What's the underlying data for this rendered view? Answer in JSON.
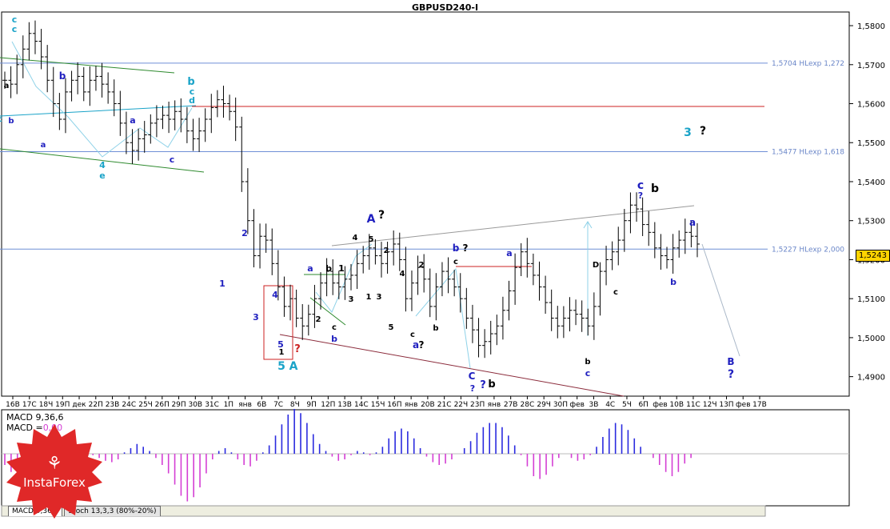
{
  "title": "GBPUSD240-I",
  "macd": {
    "label": "MACD 9,36,6",
    "main_label": "MACD =",
    "main_value": "0,00"
  },
  "tabs": [
    "MACD 9,36,6",
    "Stoch 13,3,3 (80%-20%)"
  ],
  "current_price": "1,5243",
  "brand": "InstaForex",
  "colors": {
    "up_hist": "#2a2adf",
    "down_hist": "#d43fd4",
    "accent": "#ffd400",
    "hline": "#6f8fd6",
    "resistance": "#cc2222",
    "trend_green": "#2e8a2e",
    "trend_gray": "#9a9a9a",
    "down_channel": "#8b2b3b",
    "wave_blue": "#1f1fbf",
    "wave_teal": "#1aa3c8"
  },
  "chart_data": {
    "type": "line",
    "ylim": [
      1.485,
      1.5835
    ],
    "y_ticks": [
      "1,5800",
      "1,5700",
      "1,5600",
      "1,5500",
      "1,5400",
      "1,5300",
      "1,5200",
      "1,5100",
      "1,5000",
      "1,4900"
    ],
    "x_ticks": [
      "16В",
      "17С",
      "18Ч",
      "19П",
      "дек",
      "22П",
      "23В",
      "24С",
      "25Ч",
      "26П",
      "29П",
      "30В",
      "31С",
      "1П",
      "янв",
      "6В",
      "7С",
      "8Ч",
      "9П",
      "12П",
      "13В",
      "14С",
      "15Ч",
      "16П",
      "янв",
      "20В",
      "21С",
      "22Ч",
      "23П",
      "янв",
      "27В",
      "28С",
      "29Ч",
      "30П",
      "фев",
      "3В",
      "4С",
      "5Ч",
      "6П",
      "фев",
      "10В",
      "11С",
      "12Ч",
      "13П",
      "фев",
      "17В"
    ],
    "close": [
      1.566,
      1.565,
      1.57,
      1.574,
      1.578,
      1.576,
      1.572,
      1.566,
      1.56,
      1.556,
      1.563,
      1.566,
      1.567,
      1.563,
      1.566,
      1.567,
      1.565,
      1.563,
      1.56,
      1.555,
      1.55,
      1.548,
      1.551,
      1.552,
      1.555,
      1.556,
      1.557,
      1.556,
      1.558,
      1.556,
      1.553,
      1.551,
      1.553,
      1.556,
      1.559,
      1.561,
      1.56,
      1.558,
      1.554,
      1.54,
      1.53,
      1.521,
      1.526,
      1.525,
      1.519,
      1.513,
      1.508,
      1.51,
      1.505,
      1.503,
      1.506,
      1.51,
      1.514,
      1.517,
      1.514,
      1.513,
      1.515,
      1.516,
      1.519,
      1.521,
      1.523,
      1.521,
      1.519,
      1.522,
      1.524,
      1.52,
      1.51,
      1.514,
      1.518,
      1.515,
      1.508,
      1.513,
      1.517,
      1.515,
      1.513,
      1.51,
      1.505,
      1.502,
      1.498,
      1.499,
      1.501,
      1.503,
      1.507,
      1.512,
      1.518,
      1.522,
      1.519,
      1.516,
      1.513,
      1.509,
      1.505,
      1.503,
      1.505,
      1.507,
      1.506,
      1.505,
      1.503,
      1.508,
      1.517,
      1.52,
      1.522,
      1.525,
      1.53,
      1.534,
      1.533,
      1.529,
      1.527,
      1.523,
      1.521,
      1.52,
      1.523,
      1.525,
      1.527,
      1.526,
      1.524
    ],
    "hlines": [
      {
        "label": "1,5704 HLexp 1,272",
        "value": 1.5704
      },
      {
        "label": "1,5477 HLexp 1,618",
        "value": 1.5477
      },
      {
        "label": "1,5227 HLexp 2,000",
        "value": 1.5227
      }
    ],
    "wave_labels": [
      "c",
      "c",
      "a",
      "c",
      "b",
      "a",
      "b",
      "4",
      "e",
      "c",
      "a",
      "c",
      "d",
      "b",
      "1",
      "2",
      "3",
      "4",
      "5",
      "1",
      "5",
      "A",
      "?",
      "a",
      "b",
      "1",
      "c",
      "b",
      "2",
      "3",
      "5",
      "c",
      "A",
      "?",
      "4",
      "1",
      "2",
      "3",
      "4",
      "5",
      "a",
      "?",
      "b",
      "?",
      "c",
      "a",
      "2",
      "b",
      "?",
      "b",
      "?",
      "C",
      "c",
      "?",
      "b",
      "a",
      "b",
      "c",
      "b",
      "c",
      "D",
      "B",
      "?",
      "3",
      "?"
    ],
    "macd_values": [
      -0.0008,
      -0.0013,
      -0.0016,
      -0.0015,
      -0.0011,
      -0.0006,
      -0.0002,
      0.0002,
      0.0005,
      0.0007,
      0.0008,
      0.0007,
      0.0005,
      0.0002,
      -0.0001,
      -0.0003,
      -0.0005,
      -0.0006,
      -0.0004,
      0.0001,
      0.0004,
      0.0007,
      0.0005,
      0.0002,
      -0.0003,
      -0.0008,
      -0.0014,
      -0.0022,
      -0.003,
      -0.0034,
      -0.0031,
      -0.0024,
      -0.0014,
      -0.0004,
      0.0002,
      0.0004,
      0.0001,
      -0.0004,
      -0.0008,
      -0.0009,
      -0.0005,
      0.0001,
      0.0006,
      0.0013,
      0.0021,
      0.0028,
      0.0032,
      0.0029,
      0.0022,
      0.0014,
      0.0007,
      0.0002,
      -0.0002,
      -0.0005,
      -0.0004,
      -0.0001,
      0.0002,
      0.0001,
      -0.0001,
      0.0001,
      0.0005,
      0.0011,
      0.0016,
      0.0018,
      0.0016,
      0.0011,
      0.0004,
      -0.0002,
      -0.0006,
      -0.0008,
      -0.0007,
      -0.0004,
      0,
      0.0004,
      0.0009,
      0.0015,
      0.0019,
      0.0022,
      0.0022,
      0.0019,
      0.0013,
      0.0006,
      -0.0001,
      -0.0009,
      -0.0016,
      -0.0018,
      -0.0015,
      -0.0009,
      -0.0003,
      0,
      -0.0003,
      -0.0005,
      -0.0004,
      -0.0001,
      0.0005,
      0.0012,
      0.0018,
      0.0022,
      0.0021,
      0.0017,
      0.0011,
      0.0005,
      0,
      -0.0003,
      -0.0008,
      -0.0013,
      -0.0016,
      -0.0013,
      -0.0007,
      -0.0003,
      0
    ]
  }
}
